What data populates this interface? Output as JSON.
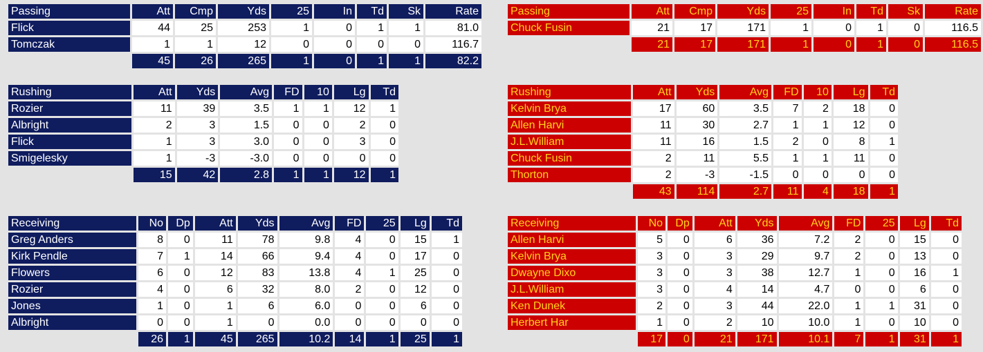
{
  "away": {
    "passing": {
      "columns": [
        "Passing",
        "Att",
        "Cmp",
        "Yds",
        "25",
        "In",
        "Td",
        "Sk",
        "Rate"
      ],
      "rows": [
        [
          "Flick",
          "44",
          "25",
          "253",
          "1",
          "0",
          "1",
          "1",
          "81.0"
        ],
        [
          "Tomczak",
          "1",
          "1",
          "12",
          "0",
          "0",
          "0",
          "0",
          "116.7"
        ]
      ],
      "totals": [
        "45",
        "26",
        "265",
        "1",
        "0",
        "1",
        "1",
        "82.2"
      ]
    },
    "rushing": {
      "columns": [
        "Rushing",
        "Att",
        "Yds",
        "Avg",
        "FD",
        "10",
        "Lg",
        "Td"
      ],
      "rows": [
        [
          "Rozier",
          "11",
          "39",
          "3.5",
          "1",
          "1",
          "12",
          "1"
        ],
        [
          "Albright",
          "2",
          "3",
          "1.5",
          "0",
          "0",
          "2",
          "0"
        ],
        [
          "Flick",
          "1",
          "3",
          "3.0",
          "0",
          "0",
          "3",
          "0"
        ],
        [
          "Smigelesky",
          "1",
          "-3",
          "-3.0",
          "0",
          "0",
          "0",
          "0"
        ]
      ],
      "totals": [
        "15",
        "42",
        "2.8",
        "1",
        "1",
        "12",
        "1"
      ]
    },
    "receiving": {
      "columns": [
        "Receiving",
        "No",
        "Dp",
        "Att",
        "Yds",
        "Avg",
        "FD",
        "25",
        "Lg",
        "Td"
      ],
      "rows": [
        [
          "Greg Anders",
          "8",
          "0",
          "11",
          "78",
          "9.8",
          "4",
          "0",
          "15",
          "1"
        ],
        [
          "Kirk Pendle",
          "7",
          "1",
          "14",
          "66",
          "9.4",
          "4",
          "0",
          "17",
          "0"
        ],
        [
          "Flowers",
          "6",
          "0",
          "12",
          "83",
          "13.8",
          "4",
          "1",
          "25",
          "0"
        ],
        [
          "Rozier",
          "4",
          "0",
          "6",
          "32",
          "8.0",
          "2",
          "0",
          "12",
          "0"
        ],
        [
          "Jones",
          "1",
          "0",
          "1",
          "6",
          "6.0",
          "0",
          "0",
          "6",
          "0"
        ],
        [
          "Albright",
          "0",
          "0",
          "1",
          "0",
          "0.0",
          "0",
          "0",
          "0",
          "0"
        ]
      ],
      "totals": [
        "26",
        "1",
        "45",
        "265",
        "10.2",
        "14",
        "1",
        "25",
        "1"
      ]
    }
  },
  "home": {
    "passing": {
      "columns": [
        "Passing",
        "Att",
        "Cmp",
        "Yds",
        "25",
        "In",
        "Td",
        "Sk",
        "Rate"
      ],
      "rows": [
        [
          "Chuck Fusin",
          "21",
          "17",
          "171",
          "1",
          "0",
          "1",
          "0",
          "116.5"
        ]
      ],
      "totals": [
        "21",
        "17",
        "171",
        "1",
        "0",
        "1",
        "0",
        "116.5"
      ]
    },
    "rushing": {
      "columns": [
        "Rushing",
        "Att",
        "Yds",
        "Avg",
        "FD",
        "10",
        "Lg",
        "Td"
      ],
      "rows": [
        [
          "Kelvin Brya",
          "17",
          "60",
          "3.5",
          "7",
          "2",
          "18",
          "0"
        ],
        [
          "Allen Harvi",
          "11",
          "30",
          "2.7",
          "1",
          "1",
          "12",
          "0"
        ],
        [
          "J.L.William",
          "11",
          "16",
          "1.5",
          "2",
          "0",
          "8",
          "1"
        ],
        [
          "Chuck Fusin",
          "2",
          "11",
          "5.5",
          "1",
          "1",
          "11",
          "0"
        ],
        [
          "Thorton",
          "2",
          "-3",
          "-1.5",
          "0",
          "0",
          "0",
          "0"
        ]
      ],
      "totals": [
        "43",
        "114",
        "2.7",
        "11",
        "4",
        "18",
        "1"
      ]
    },
    "receiving": {
      "columns": [
        "Receiving",
        "No",
        "Dp",
        "Att",
        "Yds",
        "Avg",
        "FD",
        "25",
        "Lg",
        "Td"
      ],
      "rows": [
        [
          "Allen Harvi",
          "5",
          "0",
          "6",
          "36",
          "7.2",
          "2",
          "0",
          "15",
          "0"
        ],
        [
          "Kelvin Brya",
          "3",
          "0",
          "3",
          "29",
          "9.7",
          "2",
          "0",
          "13",
          "0"
        ],
        [
          "Dwayne Dixo",
          "3",
          "0",
          "3",
          "38",
          "12.7",
          "1",
          "0",
          "16",
          "1"
        ],
        [
          "J.L.William",
          "3",
          "0",
          "4",
          "14",
          "4.7",
          "0",
          "0",
          "6",
          "0"
        ],
        [
          "Ken Dunek",
          "2",
          "0",
          "3",
          "44",
          "22.0",
          "1",
          "1",
          "31",
          "0"
        ],
        [
          "Herbert Har",
          "1",
          "0",
          "2",
          "10",
          "10.0",
          "1",
          "0",
          "10",
          "0"
        ]
      ],
      "totals": [
        "17",
        "0",
        "21",
        "171",
        "10.1",
        "7",
        "1",
        "31",
        "1"
      ]
    }
  },
  "colors": {
    "away_bg": "#0f1c5e",
    "away_text": "#ffffff",
    "home_bg": "#cc0000",
    "home_text": "#ffd21e",
    "page_bg": "#e3e3e3"
  }
}
